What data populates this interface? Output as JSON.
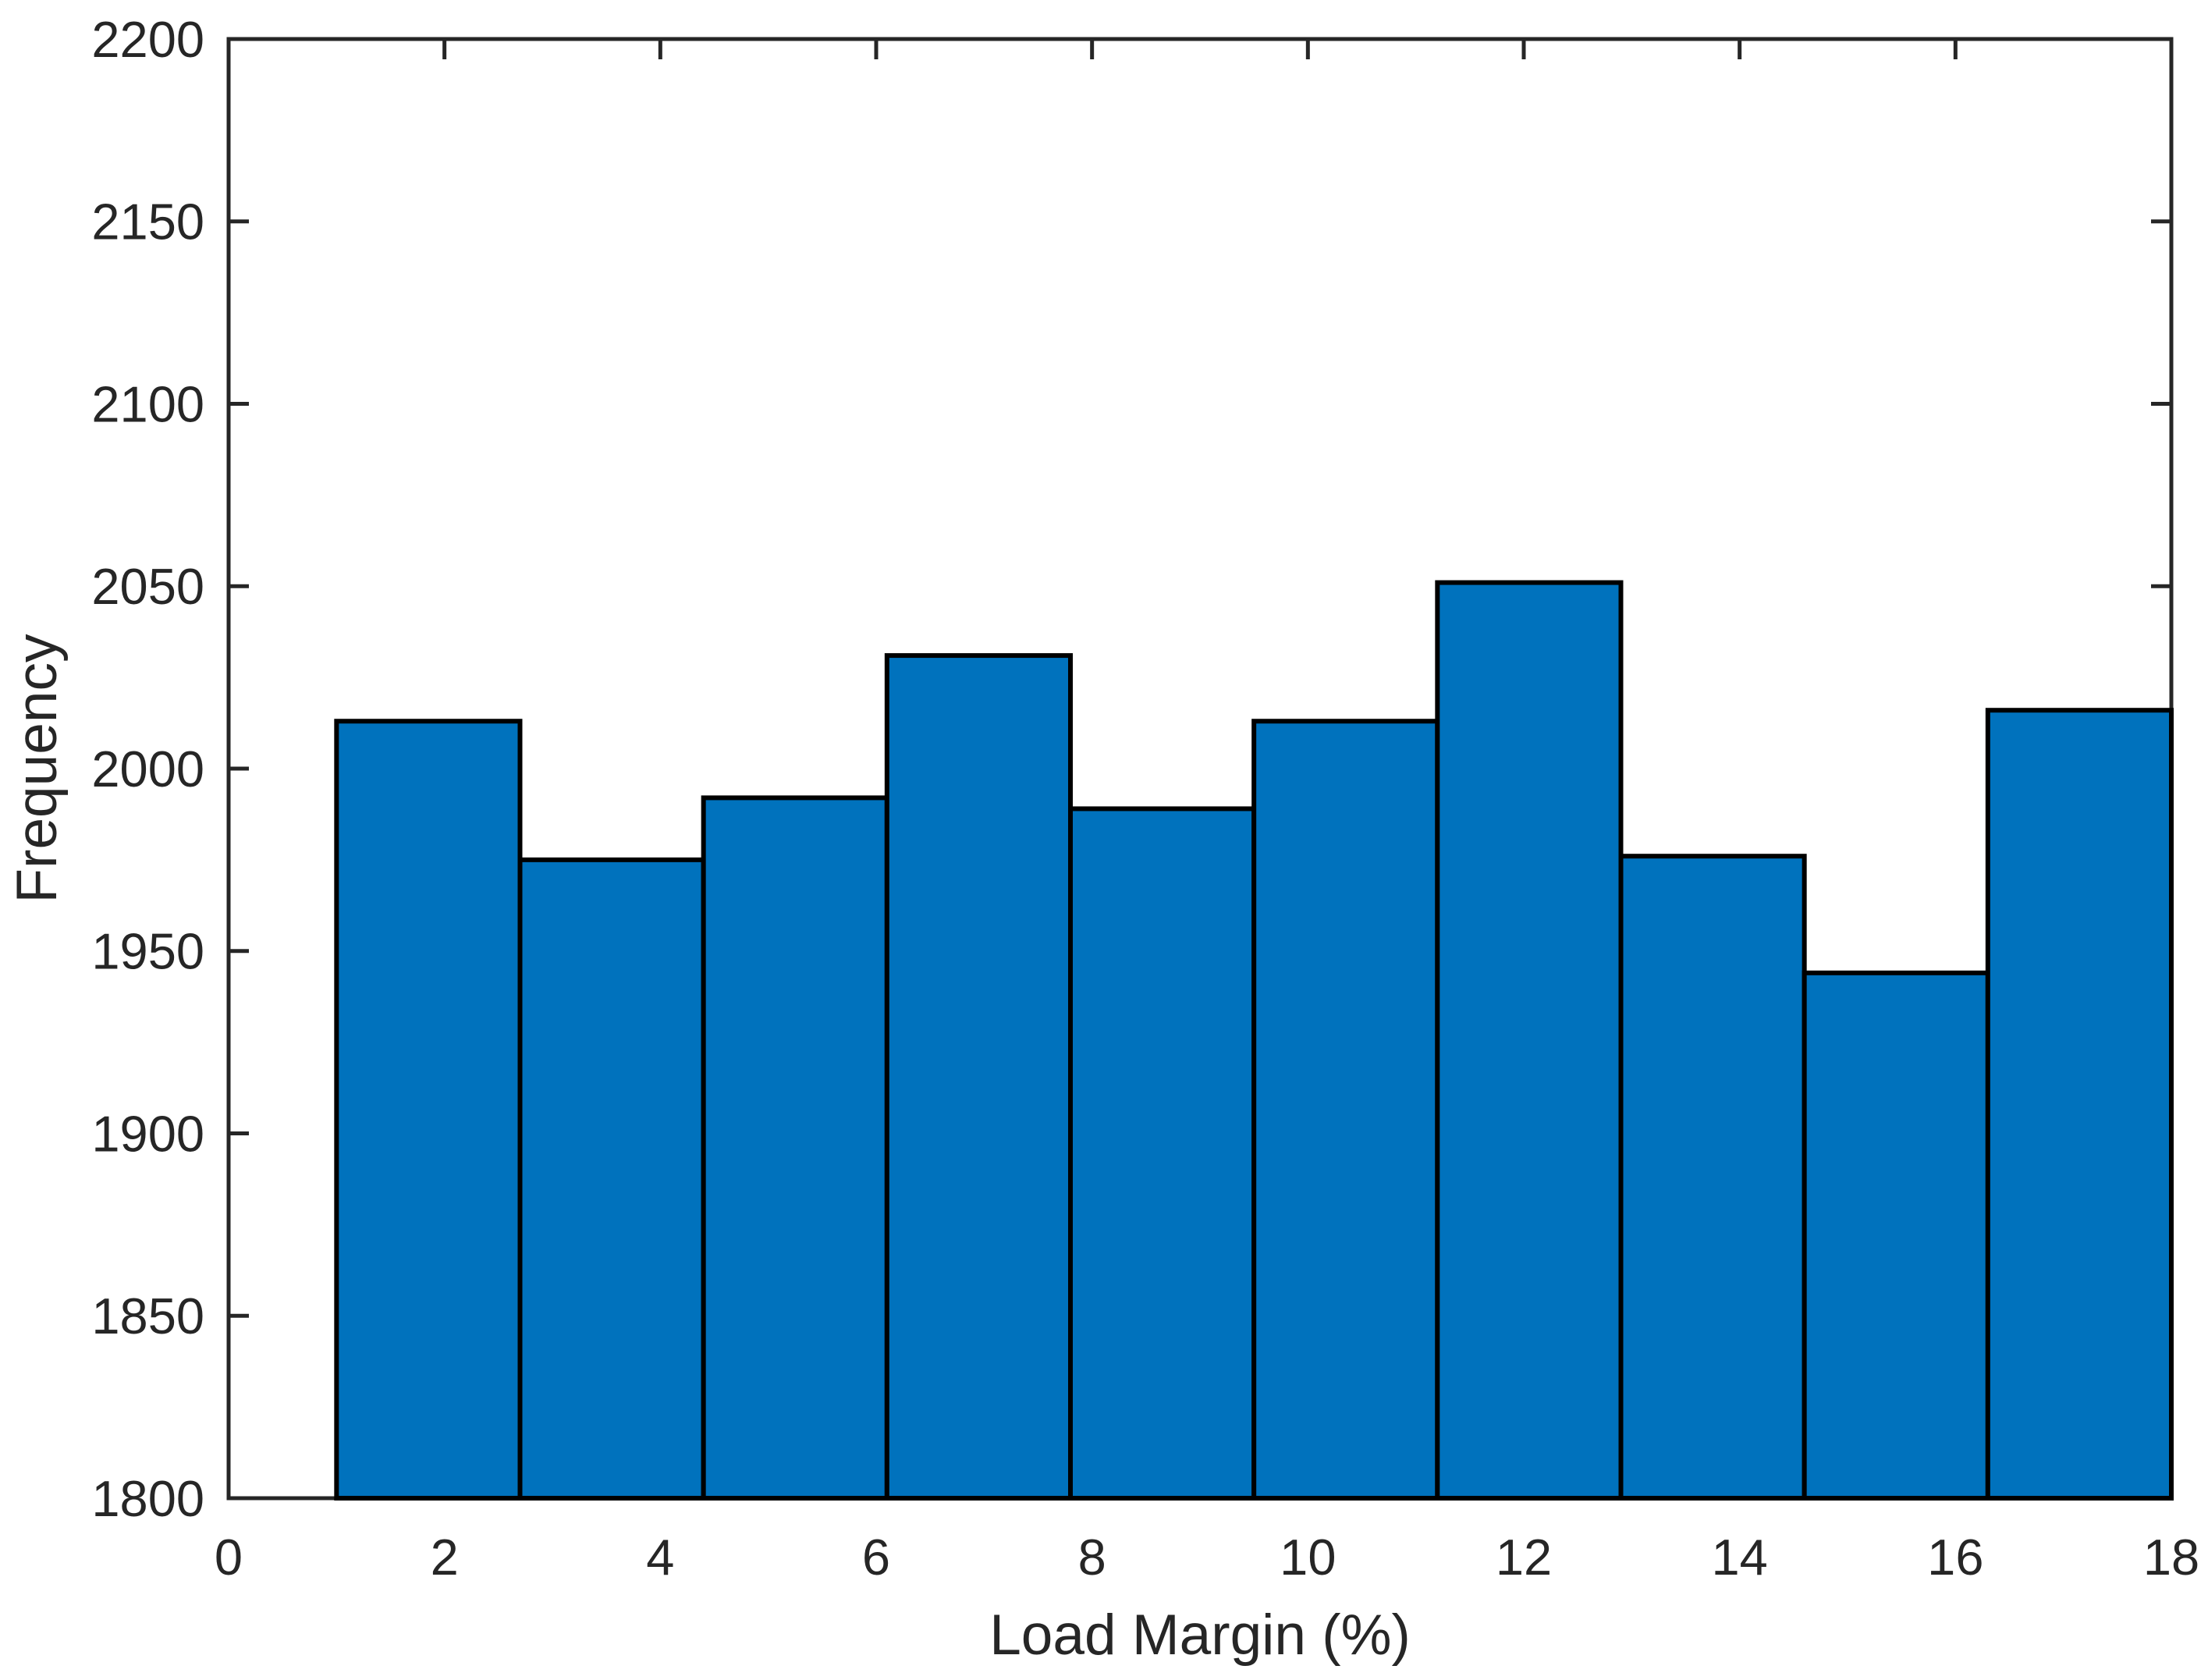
{
  "figure": {
    "background": "#FFFFFF"
  },
  "chart_data": {
    "type": "bar",
    "subtype": "histogram",
    "xlabel": "Load Margin (%)",
    "ylabel": "Frequency",
    "xlim": [
      0,
      18
    ],
    "ylim": [
      1800,
      2200
    ],
    "xticks": [
      0,
      2,
      4,
      6,
      8,
      10,
      12,
      14,
      16,
      18
    ],
    "yticks": [
      1800,
      1850,
      1900,
      1950,
      2000,
      2050,
      2100,
      2150,
      2200
    ],
    "bin_edges": [
      1.0,
      2.7,
      4.4,
      6.1,
      7.8,
      9.5,
      11.2,
      12.9,
      14.6,
      16.3,
      18.0
    ],
    "frequencies": [
      2013,
      1975,
      1992,
      2031,
      1989,
      2013,
      2051,
      1976,
      1944,
      2016
    ],
    "grid": false,
    "box": true,
    "tick_direction": "in",
    "legend": null,
    "colors": {
      "bar_fill": "#0072BD",
      "bar_edge": "#000000",
      "axis": "#262626",
      "text": "#262626",
      "background": "#FFFFFF"
    }
  }
}
